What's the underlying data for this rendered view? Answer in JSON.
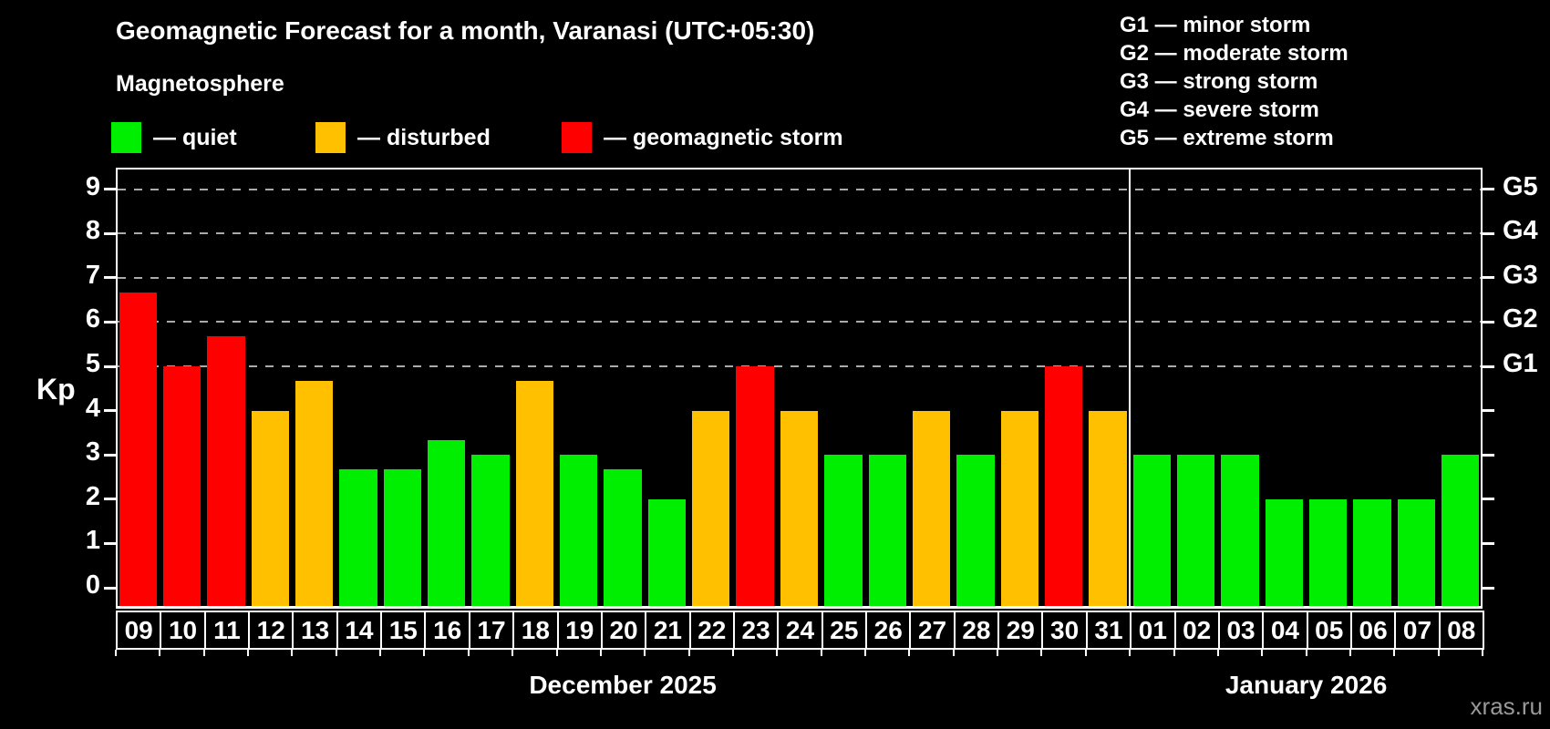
{
  "header": {
    "title": "Geomagnetic Forecast for a month, Varanasi (UTC+05:30)",
    "subtitle": "Magnetosphere"
  },
  "legend": {
    "quiet_label": "— quiet",
    "disturbed_label": "— disturbed",
    "storm_label": "— geomagnetic storm"
  },
  "g_legend": [
    "G1 — minor storm",
    "G2 — moderate storm",
    "G3 — strong storm",
    "G4 — severe storm",
    "G5 — extreme storm"
  ],
  "axis": {
    "y_label": "Kp",
    "y_ticks": [
      "0",
      "1",
      "2",
      "3",
      "4",
      "5",
      "6",
      "7",
      "8",
      "9"
    ],
    "right_labels": [
      {
        "kp": 5,
        "text": "G1"
      },
      {
        "kp": 6,
        "text": "G2"
      },
      {
        "kp": 7,
        "text": "G3"
      },
      {
        "kp": 8,
        "text": "G4"
      },
      {
        "kp": 9,
        "text": "G5"
      }
    ]
  },
  "months": {
    "first": "December 2025",
    "second": "January 2026"
  },
  "watermark": "xras.ru",
  "colors": {
    "quiet": "#00ee00",
    "disturbed": "#ffc000",
    "storm": "#ff0000",
    "grid": "#aaaaaa",
    "axis": "#ffffff",
    "watermark": "#999999"
  },
  "chart_data": {
    "type": "bar",
    "title": "Geomagnetic Forecast for a month, Varanasi (UTC+05:30)",
    "ylabel": "Kp",
    "ylim": [
      0,
      9.5
    ],
    "grid": "dashed horizontal at Kp 5-9 only",
    "legend_position": "top",
    "gridlines_at": [
      5,
      6,
      7,
      8,
      9
    ],
    "sections": [
      {
        "label": "December 2025",
        "days": 23
      },
      {
        "label": "January 2026",
        "days": 8
      }
    ],
    "points": [
      {
        "day": "09",
        "kp": 6.67,
        "level": "storm"
      },
      {
        "day": "10",
        "kp": 5.0,
        "level": "storm"
      },
      {
        "day": "11",
        "kp": 5.67,
        "level": "storm"
      },
      {
        "day": "12",
        "kp": 4.0,
        "level": "disturbed"
      },
      {
        "day": "13",
        "kp": 4.67,
        "level": "disturbed"
      },
      {
        "day": "14",
        "kp": 2.67,
        "level": "quiet"
      },
      {
        "day": "15",
        "kp": 2.67,
        "level": "quiet"
      },
      {
        "day": "16",
        "kp": 3.33,
        "level": "quiet"
      },
      {
        "day": "17",
        "kp": 3.0,
        "level": "quiet"
      },
      {
        "day": "18",
        "kp": 4.67,
        "level": "disturbed"
      },
      {
        "day": "19",
        "kp": 3.0,
        "level": "quiet"
      },
      {
        "day": "20",
        "kp": 2.67,
        "level": "quiet"
      },
      {
        "day": "21",
        "kp": 2.0,
        "level": "quiet"
      },
      {
        "day": "22",
        "kp": 4.0,
        "level": "disturbed"
      },
      {
        "day": "23",
        "kp": 5.0,
        "level": "storm"
      },
      {
        "day": "24",
        "kp": 4.0,
        "level": "disturbed"
      },
      {
        "day": "25",
        "kp": 3.0,
        "level": "quiet"
      },
      {
        "day": "26",
        "kp": 3.0,
        "level": "quiet"
      },
      {
        "day": "27",
        "kp": 4.0,
        "level": "disturbed"
      },
      {
        "day": "28",
        "kp": 3.0,
        "level": "quiet"
      },
      {
        "day": "29",
        "kp": 4.0,
        "level": "disturbed"
      },
      {
        "day": "30",
        "kp": 5.0,
        "level": "storm"
      },
      {
        "day": "31",
        "kp": 4.0,
        "level": "disturbed"
      },
      {
        "day": "01",
        "kp": 3.0,
        "level": "quiet"
      },
      {
        "day": "02",
        "kp": 3.0,
        "level": "quiet"
      },
      {
        "day": "03",
        "kp": 3.0,
        "level": "quiet"
      },
      {
        "day": "04",
        "kp": 2.0,
        "level": "quiet"
      },
      {
        "day": "05",
        "kp": 2.0,
        "level": "quiet"
      },
      {
        "day": "06",
        "kp": 2.0,
        "level": "quiet"
      },
      {
        "day": "07",
        "kp": 2.0,
        "level": "quiet"
      },
      {
        "day": "08",
        "kp": 3.0,
        "level": "quiet"
      }
    ]
  }
}
